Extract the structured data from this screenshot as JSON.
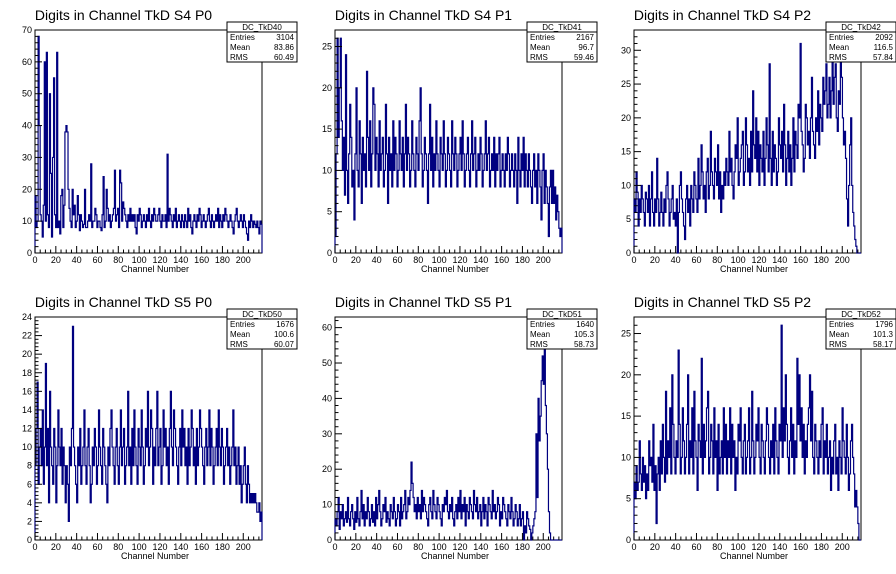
{
  "chart_data": [
    {
      "type": "histogram",
      "title": "Digits in Channel TkD S4 P0",
      "xlabel": "Channel Number",
      "ylabel": "",
      "xlim": [
        0,
        218
      ],
      "ylim": [
        0,
        70
      ],
      "xticks": [
        0,
        20,
        40,
        60,
        80,
        100,
        120,
        140,
        160,
        180,
        200
      ],
      "yticks": [
        0,
        10,
        20,
        30,
        40,
        50,
        60,
        70
      ],
      "stats": {
        "name": "DC_TkD40",
        "entries": "3104",
        "mean": "83.86",
        "rms": "60.49"
      },
      "values": [
        18,
        8,
        10,
        68,
        40,
        12,
        10,
        5,
        15,
        60,
        10,
        63,
        12,
        8,
        50,
        25,
        5,
        30,
        55,
        12,
        8,
        63,
        8,
        10,
        6,
        18,
        20,
        8,
        15,
        38,
        40,
        38,
        20,
        14,
        10,
        8,
        20,
        12,
        15,
        8,
        10,
        18,
        12,
        7,
        12,
        10,
        8,
        9,
        20,
        8,
        8,
        10,
        12,
        10,
        28,
        8,
        10,
        10,
        14,
        12,
        8,
        10,
        10,
        8,
        7,
        12,
        24,
        8,
        10,
        20,
        14,
        10,
        12,
        8,
        10,
        12,
        14,
        26,
        10,
        12,
        14,
        8,
        26,
        22,
        10,
        16,
        14,
        12,
        10,
        8,
        12,
        10,
        14,
        10,
        12,
        10,
        12,
        8,
        6,
        12,
        10,
        14,
        12,
        8,
        10,
        12,
        10,
        8,
        12,
        10,
        14,
        10,
        8,
        12,
        10,
        14,
        12,
        10,
        10,
        12,
        14,
        10,
        8,
        12,
        10,
        10,
        12,
        8,
        31,
        10,
        14,
        12,
        10,
        8,
        12,
        10,
        14,
        8,
        10,
        12,
        10,
        8,
        12,
        10,
        8,
        12,
        10,
        8,
        14,
        10,
        12,
        8,
        6,
        10,
        12,
        10,
        8,
        12,
        10,
        14,
        12,
        8,
        10,
        12,
        10,
        8,
        10,
        12,
        14,
        10,
        8,
        12,
        10,
        8,
        10,
        12,
        10,
        14,
        8,
        12,
        10,
        8,
        12,
        10,
        14,
        12,
        10,
        8,
        10,
        12,
        10,
        8,
        6,
        10,
        12,
        14,
        10,
        8,
        10,
        12,
        10,
        8,
        12,
        10,
        8,
        6,
        4,
        10,
        8,
        12,
        10,
        8,
        10,
        9,
        8,
        10,
        8,
        6,
        10,
        9
      ]
    },
    {
      "type": "histogram",
      "title": "Digits in Channel TkD S4 P1",
      "xlabel": "Channel Number",
      "ylabel": "",
      "xlim": [
        0,
        218
      ],
      "ylim": [
        0,
        27
      ],
      "xticks": [
        0,
        20,
        40,
        60,
        80,
        100,
        120,
        140,
        160,
        180,
        200
      ],
      "yticks": [
        0,
        5,
        10,
        15,
        20,
        25
      ],
      "stats": {
        "name": "DC_TkD41",
        "entries": "2167",
        "mean": "96.7",
        "rms": "59.46"
      },
      "values": [
        2,
        12,
        26,
        14,
        20,
        26,
        16,
        10,
        14,
        7,
        24,
        10,
        6,
        12,
        18,
        14,
        8,
        10,
        4,
        12,
        20,
        10,
        8,
        16,
        12,
        6,
        14,
        10,
        12,
        8,
        22,
        14,
        10,
        16,
        8,
        12,
        20,
        18,
        10,
        14,
        12,
        8,
        16,
        10,
        12,
        14,
        8,
        10,
        18,
        12,
        6,
        14,
        10,
        12,
        8,
        16,
        10,
        14,
        12,
        8,
        10,
        16,
        12,
        10,
        14,
        8,
        12,
        18,
        10,
        14,
        12,
        8,
        10,
        16,
        12,
        10,
        8,
        14,
        12,
        10,
        16,
        20,
        12,
        8,
        10,
        14,
        12,
        10,
        6,
        12,
        18,
        10,
        14,
        8,
        12,
        10,
        16,
        12,
        10,
        8,
        14,
        12,
        10,
        16,
        12,
        8,
        10,
        14,
        12,
        10,
        8,
        16,
        12,
        10,
        14,
        12,
        8,
        10,
        12,
        14,
        10,
        16,
        12,
        8,
        10,
        12,
        14,
        10,
        8,
        12,
        16,
        10,
        12,
        14,
        8,
        10,
        12,
        10,
        14,
        12,
        8,
        10,
        12,
        16,
        10,
        12,
        14,
        8,
        10,
        12,
        10,
        14,
        8,
        12,
        10,
        12,
        14,
        8,
        10,
        12,
        10,
        8,
        12,
        10,
        14,
        12,
        8,
        10,
        12,
        10,
        8,
        12,
        10,
        6,
        14,
        10,
        8,
        12,
        10,
        14,
        8,
        12,
        10,
        8,
        12,
        10,
        8,
        6,
        10,
        12,
        8,
        10,
        6,
        12,
        10,
        8,
        4,
        10,
        12,
        6,
        10,
        8,
        6,
        2,
        8,
        10,
        6,
        10,
        6,
        8,
        4,
        7,
        5,
        3,
        2,
        3
      ]
    },
    {
      "type": "histogram",
      "title": "Digits in Channel TkD S4 P2",
      "xlabel": "Channel Number",
      "ylabel": "",
      "xlim": [
        0,
        218
      ],
      "ylim": [
        0,
        33
      ],
      "xticks": [
        0,
        20,
        40,
        60,
        80,
        100,
        120,
        140,
        160,
        180,
        200
      ],
      "yticks": [
        0,
        5,
        10,
        15,
        20,
        25,
        30
      ],
      "stats": {
        "name": "DC_TkD42",
        "entries": "2092",
        "mean": "116.5",
        "rms": "57.84"
      },
      "values": [
        8,
        6,
        12,
        9,
        4,
        8,
        6,
        10,
        8,
        6,
        4,
        9,
        8,
        6,
        10,
        4,
        8,
        12,
        6,
        4,
        8,
        6,
        14,
        8,
        4,
        6,
        9,
        6,
        4,
        8,
        6,
        10,
        12,
        8,
        4,
        6,
        8,
        10,
        5,
        6,
        4,
        8,
        0,
        6,
        10,
        12,
        8,
        6,
        4,
        2,
        8,
        10,
        6,
        8,
        4,
        10,
        8,
        6,
        12,
        10,
        8,
        6,
        14,
        8,
        10,
        16,
        12,
        8,
        10,
        6,
        12,
        14,
        8,
        10,
        18,
        12,
        10,
        8,
        14,
        12,
        10,
        16,
        8,
        12,
        6,
        10,
        8,
        12,
        10,
        14,
        12,
        10,
        18,
        12,
        14,
        10,
        8,
        12,
        16,
        14,
        20,
        10,
        12,
        14,
        16,
        18,
        10,
        12,
        20,
        16,
        12,
        14,
        10,
        18,
        12,
        24,
        16,
        14,
        20,
        12,
        18,
        10,
        16,
        14,
        12,
        18,
        10,
        14,
        20,
        16,
        12,
        28,
        14,
        10,
        18,
        12,
        16,
        14,
        10,
        12,
        20,
        16,
        14,
        18,
        12,
        22,
        16,
        10,
        14,
        18,
        12,
        16,
        10,
        14,
        20,
        12,
        18,
        16,
        14,
        22,
        20,
        31,
        18,
        16,
        12,
        14,
        22,
        20,
        16,
        18,
        14,
        20,
        26,
        18,
        16,
        14,
        20,
        18,
        24,
        16,
        22,
        20,
        18,
        26,
        22,
        24,
        28,
        20,
        22,
        26,
        20,
        24,
        30,
        22,
        26,
        28,
        20,
        18,
        24,
        22,
        30,
        26,
        20,
        16,
        18,
        14,
        8,
        4,
        10,
        16,
        20,
        10,
        6,
        4,
        2,
        1,
        0,
        0,
        0,
        0
      ]
    },
    {
      "type": "histogram",
      "title": "Digits in Channel TkD S5 P0",
      "xlabel": "Channel Number",
      "ylabel": "",
      "xlim": [
        0,
        218
      ],
      "ylim": [
        0,
        24
      ],
      "xticks": [
        0,
        20,
        40,
        60,
        80,
        100,
        120,
        140,
        160,
        180,
        200
      ],
      "yticks": [
        0,
        2,
        4,
        6,
        8,
        10,
        12,
        14,
        16,
        18,
        20,
        22,
        24
      ],
      "stats": {
        "name": "DC_TkD50",
        "entries": "1676",
        "mean": "100.6",
        "rms": "60.07"
      },
      "values": [
        8,
        12,
        17,
        6,
        10,
        12,
        8,
        14,
        6,
        10,
        19,
        8,
        12,
        4,
        16,
        10,
        8,
        6,
        12,
        10,
        4,
        8,
        14,
        10,
        8,
        12,
        6,
        10,
        8,
        4,
        8,
        6,
        2,
        10,
        8,
        12,
        23,
        10,
        8,
        6,
        4,
        10,
        8,
        12,
        6,
        8,
        10,
        14,
        8,
        6,
        10,
        12,
        8,
        4,
        6,
        10,
        8,
        12,
        10,
        6,
        8,
        14,
        10,
        8,
        6,
        12,
        10,
        8,
        6,
        4,
        10,
        8,
        12,
        14,
        10,
        8,
        6,
        10,
        12,
        8,
        6,
        10,
        14,
        8,
        10,
        12,
        6,
        8,
        10,
        16,
        8,
        10,
        6,
        12,
        8,
        14,
        10,
        8,
        6,
        12,
        10,
        8,
        14,
        10,
        6,
        8,
        12,
        10,
        16,
        8,
        10,
        14,
        12,
        6,
        10,
        8,
        12,
        16,
        8,
        10,
        12,
        6,
        8,
        14,
        10,
        12,
        8,
        10,
        6,
        12,
        16,
        10,
        8,
        14,
        12,
        10,
        8,
        6,
        10,
        12,
        8,
        14,
        10,
        12,
        8,
        10,
        6,
        12,
        8,
        10,
        14,
        12,
        8,
        10,
        6,
        12,
        8,
        10,
        14,
        12,
        10,
        8,
        6,
        10,
        12,
        8,
        10,
        14,
        8,
        12,
        10,
        6,
        8,
        10,
        12,
        8,
        14,
        10,
        8,
        12,
        10,
        6,
        8,
        10,
        12,
        8,
        10,
        6,
        8,
        10,
        14,
        8,
        10,
        6,
        8,
        10,
        6,
        8,
        4,
        6,
        8,
        10,
        6,
        4,
        8,
        6,
        4,
        5,
        4,
        5,
        4,
        5,
        4,
        3,
        3,
        4,
        2,
        3
      ]
    },
    {
      "type": "histogram",
      "title": "Digits in Channel TkD S5 P1",
      "xlabel": "Channel Number",
      "ylabel": "",
      "xlim": [
        0,
        218
      ],
      "ylim": [
        0,
        63
      ],
      "xticks": [
        0,
        20,
        40,
        60,
        80,
        100,
        120,
        140,
        160,
        180,
        200
      ],
      "yticks": [
        0,
        10,
        20,
        30,
        40,
        50,
        60
      ],
      "stats": {
        "name": "DC_TkD51",
        "entries": "1640",
        "mean": "105.3",
        "rms": "58.73"
      },
      "values": [
        6,
        4,
        8,
        12,
        3,
        8,
        6,
        10,
        4,
        6,
        8,
        5,
        12,
        6,
        4,
        8,
        10,
        6,
        3,
        8,
        5,
        12,
        6,
        4,
        8,
        14,
        6,
        10,
        4,
        8,
        6,
        12,
        8,
        4,
        6,
        10,
        5,
        8,
        4,
        12,
        6,
        10,
        14,
        8,
        4,
        6,
        10,
        8,
        12,
        5,
        8,
        6,
        4,
        10,
        8,
        6,
        12,
        8,
        4,
        6,
        10,
        8,
        4,
        12,
        6,
        8,
        10,
        14,
        6,
        8,
        12,
        10,
        14,
        22,
        16,
        12,
        8,
        10,
        6,
        12,
        8,
        10,
        6,
        14,
        8,
        12,
        10,
        8,
        6,
        4,
        10,
        12,
        8,
        6,
        14,
        10,
        8,
        6,
        12,
        10,
        8,
        6,
        4,
        10,
        8,
        12,
        10,
        14,
        8,
        6,
        10,
        8,
        12,
        6,
        4,
        8,
        10,
        6,
        12,
        8,
        14,
        6,
        10,
        8,
        12,
        4,
        10,
        8,
        6,
        12,
        10,
        8,
        6,
        14,
        10,
        8,
        12,
        6,
        8,
        10,
        4,
        8,
        12,
        6,
        10,
        8,
        4,
        12,
        10,
        8,
        6,
        14,
        8,
        10,
        6,
        8,
        12,
        10,
        4,
        8,
        6,
        12,
        10,
        8,
        6,
        4,
        10,
        8,
        6,
        12,
        8,
        4,
        6,
        10,
        8,
        4,
        6,
        10,
        4,
        6,
        8,
        0,
        4,
        2,
        8,
        6,
        4,
        3,
        0,
        2,
        4,
        6,
        8,
        30,
        12,
        40,
        28,
        35,
        45,
        52,
        44,
        55,
        38,
        30,
        20,
        8,
        2,
        0,
        0,
        0,
        0,
        0,
        0,
        0,
        0,
        0,
        0,
        0
      ]
    },
    {
      "type": "histogram",
      "title": "Digits in Channel TkD S5 P2",
      "xlabel": "Channel Number",
      "ylabel": "",
      "xlim": [
        0,
        218
      ],
      "ylim": [
        0,
        27
      ],
      "xticks": [
        0,
        20,
        40,
        60,
        80,
        100,
        120,
        140,
        160,
        180,
        200
      ],
      "yticks": [
        0,
        5,
        10,
        15,
        20,
        25
      ],
      "stats": {
        "name": "DC_TkD52",
        "entries": "1796",
        "mean": "101.3",
        "rms": "58.17"
      },
      "values": [
        7,
        5,
        9,
        6,
        7,
        12,
        8,
        6,
        10,
        7,
        9,
        5,
        8,
        6,
        12,
        9,
        10,
        7,
        14,
        6,
        9,
        2,
        8,
        10,
        6,
        12,
        8,
        14,
        10,
        7,
        18,
        8,
        12,
        10,
        16,
        8,
        20,
        14,
        10,
        8,
        12,
        10,
        23,
        14,
        8,
        10,
        16,
        12,
        8,
        10,
        14,
        20,
        8,
        12,
        10,
        16,
        8,
        18,
        12,
        10,
        6,
        14,
        12,
        10,
        22,
        8,
        14,
        10,
        12,
        16,
        18,
        8,
        10,
        14,
        12,
        8,
        16,
        10,
        12,
        6,
        14,
        8,
        10,
        12,
        8,
        16,
        10,
        14,
        8,
        12,
        10,
        16,
        8,
        14,
        10,
        12,
        6,
        10,
        8,
        14,
        12,
        16,
        10,
        8,
        12,
        14,
        8,
        10,
        12,
        16,
        8,
        10,
        18,
        12,
        8,
        10,
        14,
        12,
        16,
        10,
        8,
        14,
        12,
        10,
        8,
        12,
        16,
        14,
        10,
        8,
        12,
        10,
        14,
        8,
        16,
        12,
        10,
        8,
        14,
        12,
        26,
        10,
        16,
        12,
        20,
        14,
        10,
        8,
        12,
        16,
        10,
        14,
        8,
        12,
        10,
        22,
        14,
        20,
        12,
        16,
        10,
        14,
        8,
        12,
        10,
        14,
        16,
        20,
        12,
        18,
        10,
        8,
        14,
        12,
        10,
        8,
        12,
        10,
        14,
        16,
        8,
        12,
        10,
        14,
        8,
        10,
        12,
        6,
        10,
        8,
        12,
        14,
        8,
        10,
        6,
        12,
        10,
        8,
        16,
        12,
        10,
        8,
        14,
        10,
        6,
        8,
        12,
        14,
        10,
        8,
        4,
        6,
        4,
        2,
        0,
        0
      ]
    }
  ]
}
